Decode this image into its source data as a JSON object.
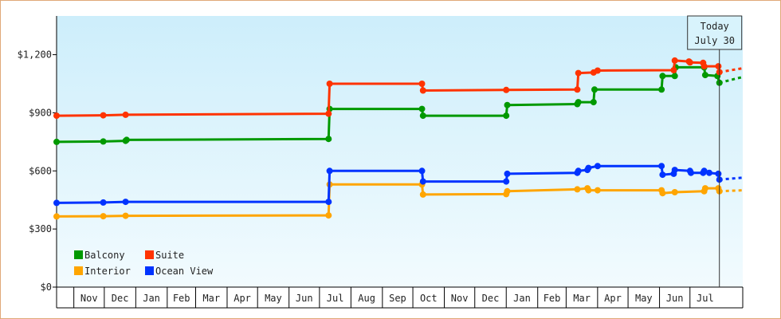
{
  "chart_data": {
    "type": "line",
    "title": "",
    "xlabel": "",
    "ylabel": "",
    "ylim": [
      0,
      1400
    ],
    "xlim": [
      "2009-10-15",
      "2011-08-22"
    ],
    "y_ticks": [
      {
        "value": 0,
        "label": "$0"
      },
      {
        "value": 300,
        "label": "$300"
      },
      {
        "value": 600,
        "label": "$600"
      },
      {
        "value": 900,
        "label": "$900"
      },
      {
        "value": 1200,
        "label": "$1,200"
      }
    ],
    "month_labels": [
      {
        "label": "Nov",
        "date": "2009-11-01"
      },
      {
        "label": "Dec",
        "date": "2009-12-01"
      },
      {
        "label": "Jan",
        "date": "2010-01-01"
      },
      {
        "label": "Feb",
        "date": "2010-02-01"
      },
      {
        "label": "Mar",
        "date": "2010-03-01"
      },
      {
        "label": "Apr",
        "date": "2010-04-01"
      },
      {
        "label": "May",
        "date": "2010-05-01"
      },
      {
        "label": "Jun",
        "date": "2010-06-01"
      },
      {
        "label": "Jul",
        "date": "2010-07-01"
      },
      {
        "label": "Aug",
        "date": "2010-08-01"
      },
      {
        "label": "Sep",
        "date": "2010-09-01"
      },
      {
        "label": "Oct",
        "date": "2010-10-01"
      },
      {
        "label": "Nov",
        "date": "2010-11-01"
      },
      {
        "label": "Dec",
        "date": "2010-12-01"
      },
      {
        "label": "Jan",
        "date": "2011-01-01"
      },
      {
        "label": "Feb",
        "date": "2011-02-01"
      },
      {
        "label": "Mar",
        "date": "2011-03-01"
      },
      {
        "label": "Apr",
        "date": "2011-04-01"
      },
      {
        "label": "May",
        "date": "2011-05-01"
      },
      {
        "label": "Jun",
        "date": "2011-06-01"
      },
      {
        "label": "Jul",
        "date": "2011-07-01"
      }
    ],
    "today": {
      "date": "2011-07-30",
      "label_line1": "Today",
      "label_line2": "July 30"
    },
    "grid": false,
    "legend_position": "bottom-left",
    "background_colors": {
      "top": "#cdeefb",
      "bottom": "#f2fbfe"
    },
    "series": [
      {
        "name": "Balcony",
        "color": "#009900",
        "points": [
          [
            "2009-10-15",
            750
          ],
          [
            "2009-11-30",
            752
          ],
          [
            "2009-12-22",
            755
          ],
          [
            "2009-12-23",
            760
          ],
          [
            "2010-07-10",
            765
          ],
          [
            "2010-07-11",
            920
          ],
          [
            "2010-10-10",
            920
          ],
          [
            "2010-10-11",
            885
          ],
          [
            "2011-01-01",
            885
          ],
          [
            "2011-01-02",
            940
          ],
          [
            "2011-03-12",
            945
          ],
          [
            "2011-03-13",
            955
          ],
          [
            "2011-03-28",
            955
          ],
          [
            "2011-03-29",
            1020
          ],
          [
            "2011-06-03",
            1020
          ],
          [
            "2011-06-04",
            1090
          ],
          [
            "2011-06-16",
            1090
          ],
          [
            "2011-06-17",
            1135
          ],
          [
            "2011-07-15",
            1135
          ],
          [
            "2011-07-16",
            1095
          ],
          [
            "2011-07-28",
            1090
          ],
          [
            "2011-07-30",
            1055
          ]
        ],
        "projection": [
          [
            "2011-07-30",
            1055
          ],
          [
            "2011-08-22",
            1085
          ]
        ]
      },
      {
        "name": "Suite",
        "color": "#ff3300",
        "points": [
          [
            "2009-10-15",
            885
          ],
          [
            "2009-11-30",
            887
          ],
          [
            "2009-12-22",
            890
          ],
          [
            "2010-07-10",
            895
          ],
          [
            "2010-07-11",
            1050
          ],
          [
            "2010-10-10",
            1050
          ],
          [
            "2010-10-11",
            1015
          ],
          [
            "2011-01-01",
            1018
          ],
          [
            "2011-03-12",
            1020
          ],
          [
            "2011-03-13",
            1105
          ],
          [
            "2011-03-28",
            1108
          ],
          [
            "2011-04-01",
            1118
          ],
          [
            "2011-06-15",
            1120
          ],
          [
            "2011-06-16",
            1170
          ],
          [
            "2011-06-30",
            1165
          ],
          [
            "2011-07-01",
            1160
          ],
          [
            "2011-07-14",
            1158
          ],
          [
            "2011-07-15",
            1140
          ],
          [
            "2011-07-29",
            1140
          ],
          [
            "2011-07-30",
            1110
          ]
        ],
        "projection": [
          [
            "2011-07-30",
            1110
          ],
          [
            "2011-08-22",
            1130
          ]
        ]
      },
      {
        "name": "Interior",
        "color": "#ffa500",
        "points": [
          [
            "2009-10-15",
            365
          ],
          [
            "2009-11-30",
            366
          ],
          [
            "2009-12-22",
            368
          ],
          [
            "2010-07-10",
            370
          ],
          [
            "2010-07-11",
            530
          ],
          [
            "2010-10-10",
            530
          ],
          [
            "2010-10-11",
            478
          ],
          [
            "2011-01-01",
            480
          ],
          [
            "2011-01-02",
            495
          ],
          [
            "2011-03-12",
            505
          ],
          [
            "2011-03-22",
            510
          ],
          [
            "2011-03-23",
            500
          ],
          [
            "2011-04-01",
            500
          ],
          [
            "2011-06-03",
            500
          ],
          [
            "2011-06-04",
            485
          ],
          [
            "2011-06-16",
            490
          ],
          [
            "2011-07-15",
            495
          ],
          [
            "2011-07-16",
            510
          ],
          [
            "2011-07-29",
            510
          ],
          [
            "2011-07-30",
            495
          ]
        ],
        "projection": [
          [
            "2011-07-30",
            495
          ],
          [
            "2011-08-22",
            500
          ]
        ]
      },
      {
        "name": "Ocean View",
        "color": "#0033ff",
        "points": [
          [
            "2009-10-15",
            435
          ],
          [
            "2009-11-30",
            437
          ],
          [
            "2009-12-22",
            440
          ],
          [
            "2010-07-10",
            440
          ],
          [
            "2010-07-11",
            600
          ],
          [
            "2010-10-10",
            600
          ],
          [
            "2010-10-11",
            545
          ],
          [
            "2011-01-01",
            545
          ],
          [
            "2011-01-02",
            585
          ],
          [
            "2011-03-12",
            590
          ],
          [
            "2011-03-13",
            600
          ],
          [
            "2011-03-22",
            605
          ],
          [
            "2011-03-23",
            615
          ],
          [
            "2011-04-01",
            625
          ],
          [
            "2011-06-03",
            625
          ],
          [
            "2011-06-04",
            580
          ],
          [
            "2011-06-15",
            585
          ],
          [
            "2011-06-16",
            605
          ],
          [
            "2011-07-01",
            600
          ],
          [
            "2011-07-02",
            590
          ],
          [
            "2011-07-14",
            590
          ],
          [
            "2011-07-15",
            600
          ],
          [
            "2011-07-20",
            590
          ],
          [
            "2011-07-29",
            585
          ],
          [
            "2011-07-30",
            555
          ]
        ],
        "projection": [
          [
            "2011-07-30",
            555
          ],
          [
            "2011-08-22",
            565
          ]
        ]
      }
    ]
  },
  "legend": [
    {
      "label": "Balcony",
      "color": "#009900"
    },
    {
      "label": "Suite",
      "color": "#ff3300"
    },
    {
      "label": "Interior",
      "color": "#ffa500"
    },
    {
      "label": "Ocean View",
      "color": "#0033ff"
    }
  ]
}
